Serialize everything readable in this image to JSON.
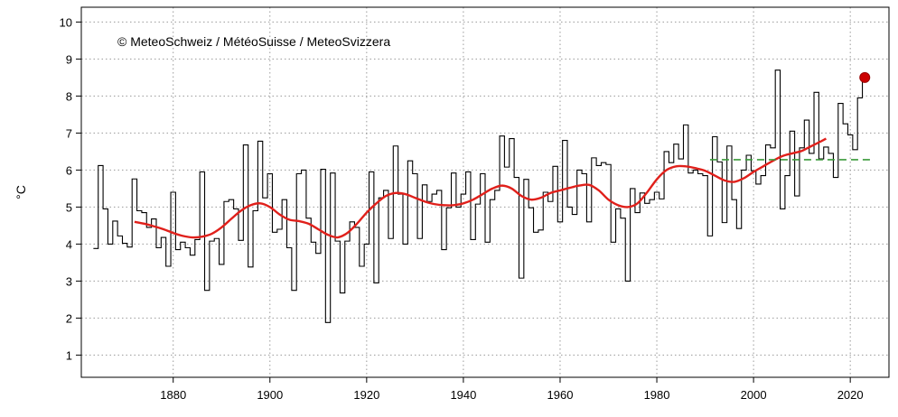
{
  "chart_data": {
    "type": "line",
    "title": "",
    "xlabel": "",
    "ylabel": "°C",
    "xlim": [
      1861,
      2028
    ],
    "ylim": [
      0.4,
      10.4
    ],
    "xticks": [
      1880,
      1900,
      1920,
      1940,
      1960,
      1980,
      2000,
      2020
    ],
    "yticks": [
      1,
      2,
      3,
      4,
      5,
      6,
      7,
      8,
      9,
      10
    ],
    "grid": true,
    "annotation": "© MeteoSchweiz / MétéoSuisse / MeteoSvizzera",
    "series": [
      {
        "style": "step",
        "color": "#000000",
        "x": [
          1864,
          1865,
          1866,
          1867,
          1868,
          1869,
          1870,
          1871,
          1872,
          1873,
          1874,
          1875,
          1876,
          1877,
          1878,
          1879,
          1880,
          1881,
          1882,
          1883,
          1884,
          1885,
          1886,
          1887,
          1888,
          1889,
          1890,
          1891,
          1892,
          1893,
          1894,
          1895,
          1896,
          1897,
          1898,
          1899,
          1900,
          1901,
          1902,
          1903,
          1904,
          1905,
          1906,
          1907,
          1908,
          1909,
          1910,
          1911,
          1912,
          1913,
          1914,
          1915,
          1916,
          1917,
          1918,
          1919,
          1920,
          1921,
          1922,
          1923,
          1924,
          1925,
          1926,
          1927,
          1928,
          1929,
          1930,
          1931,
          1932,
          1933,
          1934,
          1935,
          1936,
          1937,
          1938,
          1939,
          1940,
          1941,
          1942,
          1943,
          1944,
          1945,
          1946,
          1947,
          1948,
          1949,
          1950,
          1951,
          1952,
          1953,
          1954,
          1955,
          1956,
          1957,
          1958,
          1959,
          1960,
          1961,
          1962,
          1963,
          1964,
          1965,
          1966,
          1967,
          1968,
          1969,
          1970,
          1971,
          1972,
          1973,
          1974,
          1975,
          1976,
          1977,
          1978,
          1979,
          1980,
          1981,
          1982,
          1983,
          1984,
          1985,
          1986,
          1987,
          1988,
          1989,
          1990,
          1991,
          1992,
          1993,
          1994,
          1995,
          1996,
          1997,
          1998,
          1999,
          2000,
          2001,
          2002,
          2003,
          2004,
          2005,
          2006,
          2007,
          2008,
          2009,
          2010,
          2011,
          2012,
          2013,
          2014,
          2015,
          2016,
          2017,
          2018,
          2019,
          2020,
          2021,
          2022,
          2023
        ],
        "values": [
          3.88,
          6.12,
          4.95,
          4.0,
          4.62,
          4.22,
          4.02,
          3.92,
          5.76,
          4.9,
          4.85,
          4.45,
          4.68,
          3.9,
          4.18,
          3.4,
          5.4,
          3.85,
          4.05,
          3.9,
          3.7,
          4.12,
          5.95,
          2.75,
          4.08,
          4.15,
          3.45,
          5.15,
          5.2,
          4.95,
          4.1,
          6.68,
          3.38,
          4.9,
          6.78,
          5.25,
          5.9,
          4.32,
          4.4,
          5.2,
          3.9,
          2.75,
          5.9,
          6.0,
          4.7,
          4.05,
          3.75,
          6.02,
          1.88,
          5.92,
          4.08,
          2.68,
          4.08,
          4.6,
          4.45,
          3.4,
          4.0,
          5.95,
          2.95,
          5.25,
          5.45,
          4.15,
          6.65,
          5.35,
          4.0,
          6.25,
          5.9,
          4.15,
          5.6,
          5.15,
          5.35,
          5.45,
          3.85,
          4.98,
          5.92,
          5.0,
          5.35,
          5.95,
          4.12,
          5.08,
          5.9,
          4.05,
          5.2,
          5.45,
          6.92,
          6.08,
          6.85,
          5.8,
          3.08,
          5.75,
          4.98,
          4.32,
          4.38,
          5.4,
          5.15,
          6.1,
          4.6,
          6.8,
          5.0,
          4.8,
          6.0,
          5.9,
          4.6,
          6.33,
          6.12,
          6.2,
          6.15,
          4.05,
          4.95,
          4.7,
          3.0,
          5.5,
          4.85,
          5.38,
          5.1,
          5.2,
          5.4,
          5.22,
          6.5,
          6.2,
          6.7,
          6.3,
          7.22,
          5.92,
          6.0,
          5.9,
          5.85,
          4.22,
          6.9,
          6.22,
          4.58,
          6.65,
          5.2,
          4.42,
          6.0,
          6.4,
          5.98,
          5.62,
          5.85,
          6.68,
          6.6,
          8.7,
          4.95,
          5.85,
          7.05,
          5.3,
          6.6,
          7.35,
          6.45,
          8.1,
          6.3,
          6.62,
          6.45,
          5.8,
          7.8,
          7.25,
          6.95,
          6.55,
          7.95,
          8.5
        ]
      },
      {
        "style": "smooth",
        "color": "#e0201b",
        "x": [
          1872,
          1874,
          1876,
          1878,
          1880,
          1882,
          1884,
          1886,
          1888,
          1890,
          1892,
          1894,
          1896,
          1898,
          1900,
          1902,
          1904,
          1906,
          1908,
          1910,
          1912,
          1914,
          1916,
          1918,
          1920,
          1922,
          1924,
          1926,
          1928,
          1930,
          1932,
          1934,
          1936,
          1938,
          1940,
          1942,
          1944,
          1946,
          1948,
          1950,
          1952,
          1954,
          1956,
          1958,
          1960,
          1962,
          1964,
          1966,
          1968,
          1970,
          1972,
          1974,
          1976,
          1978,
          1980,
          1982,
          1984,
          1986,
          1988,
          1990,
          1992,
          1994,
          1996,
          1998,
          2000,
          2002,
          2004,
          2006,
          2008,
          2010,
          2012,
          2014,
          2015
        ],
        "values": [
          4.6,
          4.55,
          4.48,
          4.4,
          4.3,
          4.22,
          4.18,
          4.2,
          4.28,
          4.45,
          4.68,
          4.9,
          5.05,
          5.1,
          5.0,
          4.8,
          4.66,
          4.62,
          4.55,
          4.4,
          4.25,
          4.18,
          4.3,
          4.55,
          4.85,
          5.1,
          5.3,
          5.38,
          5.35,
          5.25,
          5.15,
          5.08,
          5.05,
          5.05,
          5.1,
          5.2,
          5.35,
          5.5,
          5.58,
          5.5,
          5.3,
          5.2,
          5.25,
          5.38,
          5.45,
          5.52,
          5.58,
          5.6,
          5.45,
          5.2,
          5.05,
          5.0,
          5.1,
          5.4,
          5.75,
          6.0,
          6.1,
          6.1,
          6.05,
          5.98,
          5.85,
          5.72,
          5.68,
          5.78,
          5.95,
          6.1,
          6.25,
          6.38,
          6.45,
          6.52,
          6.65,
          6.78,
          6.85
        ]
      },
      {
        "style": "dashed",
        "color": "#3a9a3a",
        "x": [
          1991,
          2025
        ],
        "values": [
          6.28,
          6.28
        ]
      },
      {
        "style": "point",
        "color": "#cc0000",
        "x": [
          2023
        ],
        "values": [
          8.5
        ]
      }
    ]
  }
}
